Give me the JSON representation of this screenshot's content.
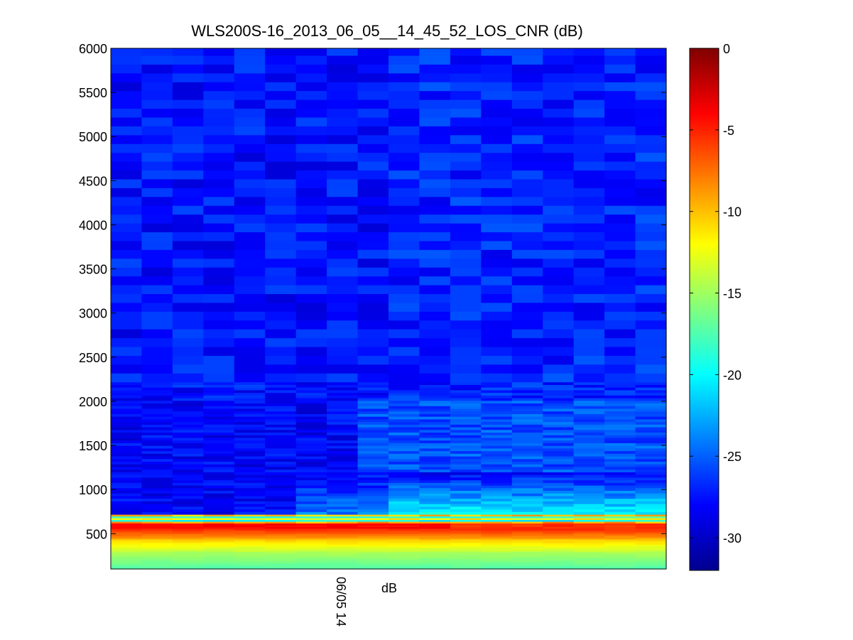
{
  "chart_data": {
    "type": "heatmap",
    "title": "WLS200S-16_2013_06_05__14_45_52_LOS_CNR (dB)",
    "xlabel": "dB",
    "ylabel": "",
    "x_tick_labels": [
      "06/05 14"
    ],
    "y_ticks": [
      500,
      1000,
      1500,
      2000,
      2500,
      3000,
      3500,
      4000,
      4500,
      5000,
      5500,
      6000
    ],
    "ylim": [
      100,
      6000
    ],
    "n_columns": 18,
    "colorbar": {
      "colormap": "jet",
      "range": [
        -32,
        0
      ],
      "ticks": [
        0,
        -5,
        -10,
        -15,
        -20,
        -25,
        -30
      ]
    },
    "profile_summary": [
      {
        "range_m": [
          100,
          300
        ],
        "cnr_db_min": -18,
        "cnr_db_max": -16
      },
      {
        "range_m": [
          300,
          450
        ],
        "cnr_db_min": -14,
        "cnr_db_max": -10
      },
      {
        "range_m": [
          450,
          560
        ],
        "cnr_db_min": -9,
        "cnr_db_max": -6
      },
      {
        "range_m": [
          560,
          620
        ],
        "cnr_db_min": -4,
        "cnr_db_max": -2
      },
      {
        "range_m": [
          620,
          720
        ],
        "cnr_db_min": -21,
        "cnr_db_max": -8
      },
      {
        "range_m": [
          720,
          1200
        ],
        "cnr_db_min": -30,
        "cnr_db_max": -20
      },
      {
        "range_m": [
          1200,
          2000
        ],
        "cnr_db_min": -31,
        "cnr_db_max": -24
      },
      {
        "range_m": [
          2000,
          6000
        ],
        "cnr_db_min": -31,
        "cnr_db_max": -24
      }
    ]
  }
}
